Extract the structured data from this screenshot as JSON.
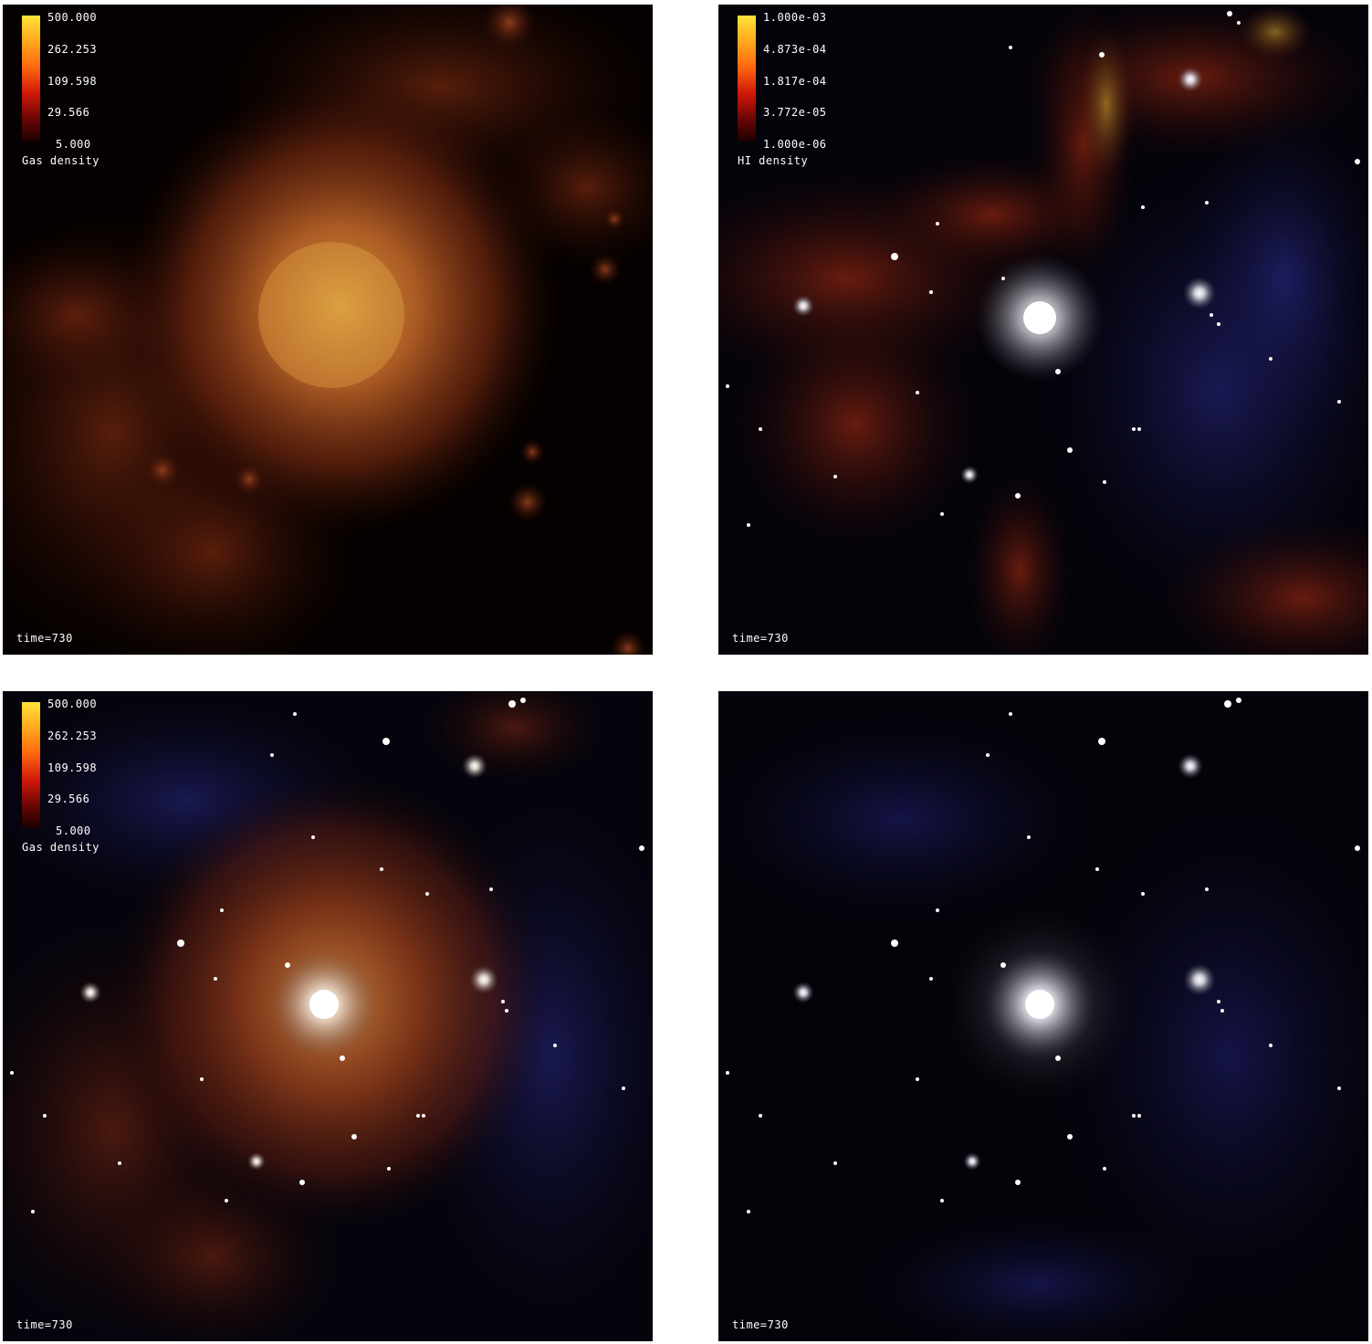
{
  "panels": [
    {
      "time_label": "time=730",
      "colorbar": {
        "label": "Gas density",
        "ticks": [
          "500.000",
          "262.253",
          "109.598",
          "29.566",
          "5.000"
        ]
      }
    },
    {
      "time_label": "time=730",
      "colorbar": {
        "label": "HI density",
        "ticks": [
          "1.000e-03",
          "4.873e-04",
          "1.817e-04",
          "3.772e-05",
          "1.000e-06"
        ]
      }
    },
    {
      "time_label": "time=730",
      "colorbar": {
        "label": "Gas density",
        "ticks": [
          "500.000",
          "262.253",
          "109.598",
          "29.566",
          "5.000"
        ]
      }
    },
    {
      "time_label": "time=730"
    }
  ],
  "colors": {
    "gas_core": "#e8a040",
    "gas_halo": "#9a3416",
    "dark_matter": "#2a2a8a",
    "star": "#ffffff"
  }
}
